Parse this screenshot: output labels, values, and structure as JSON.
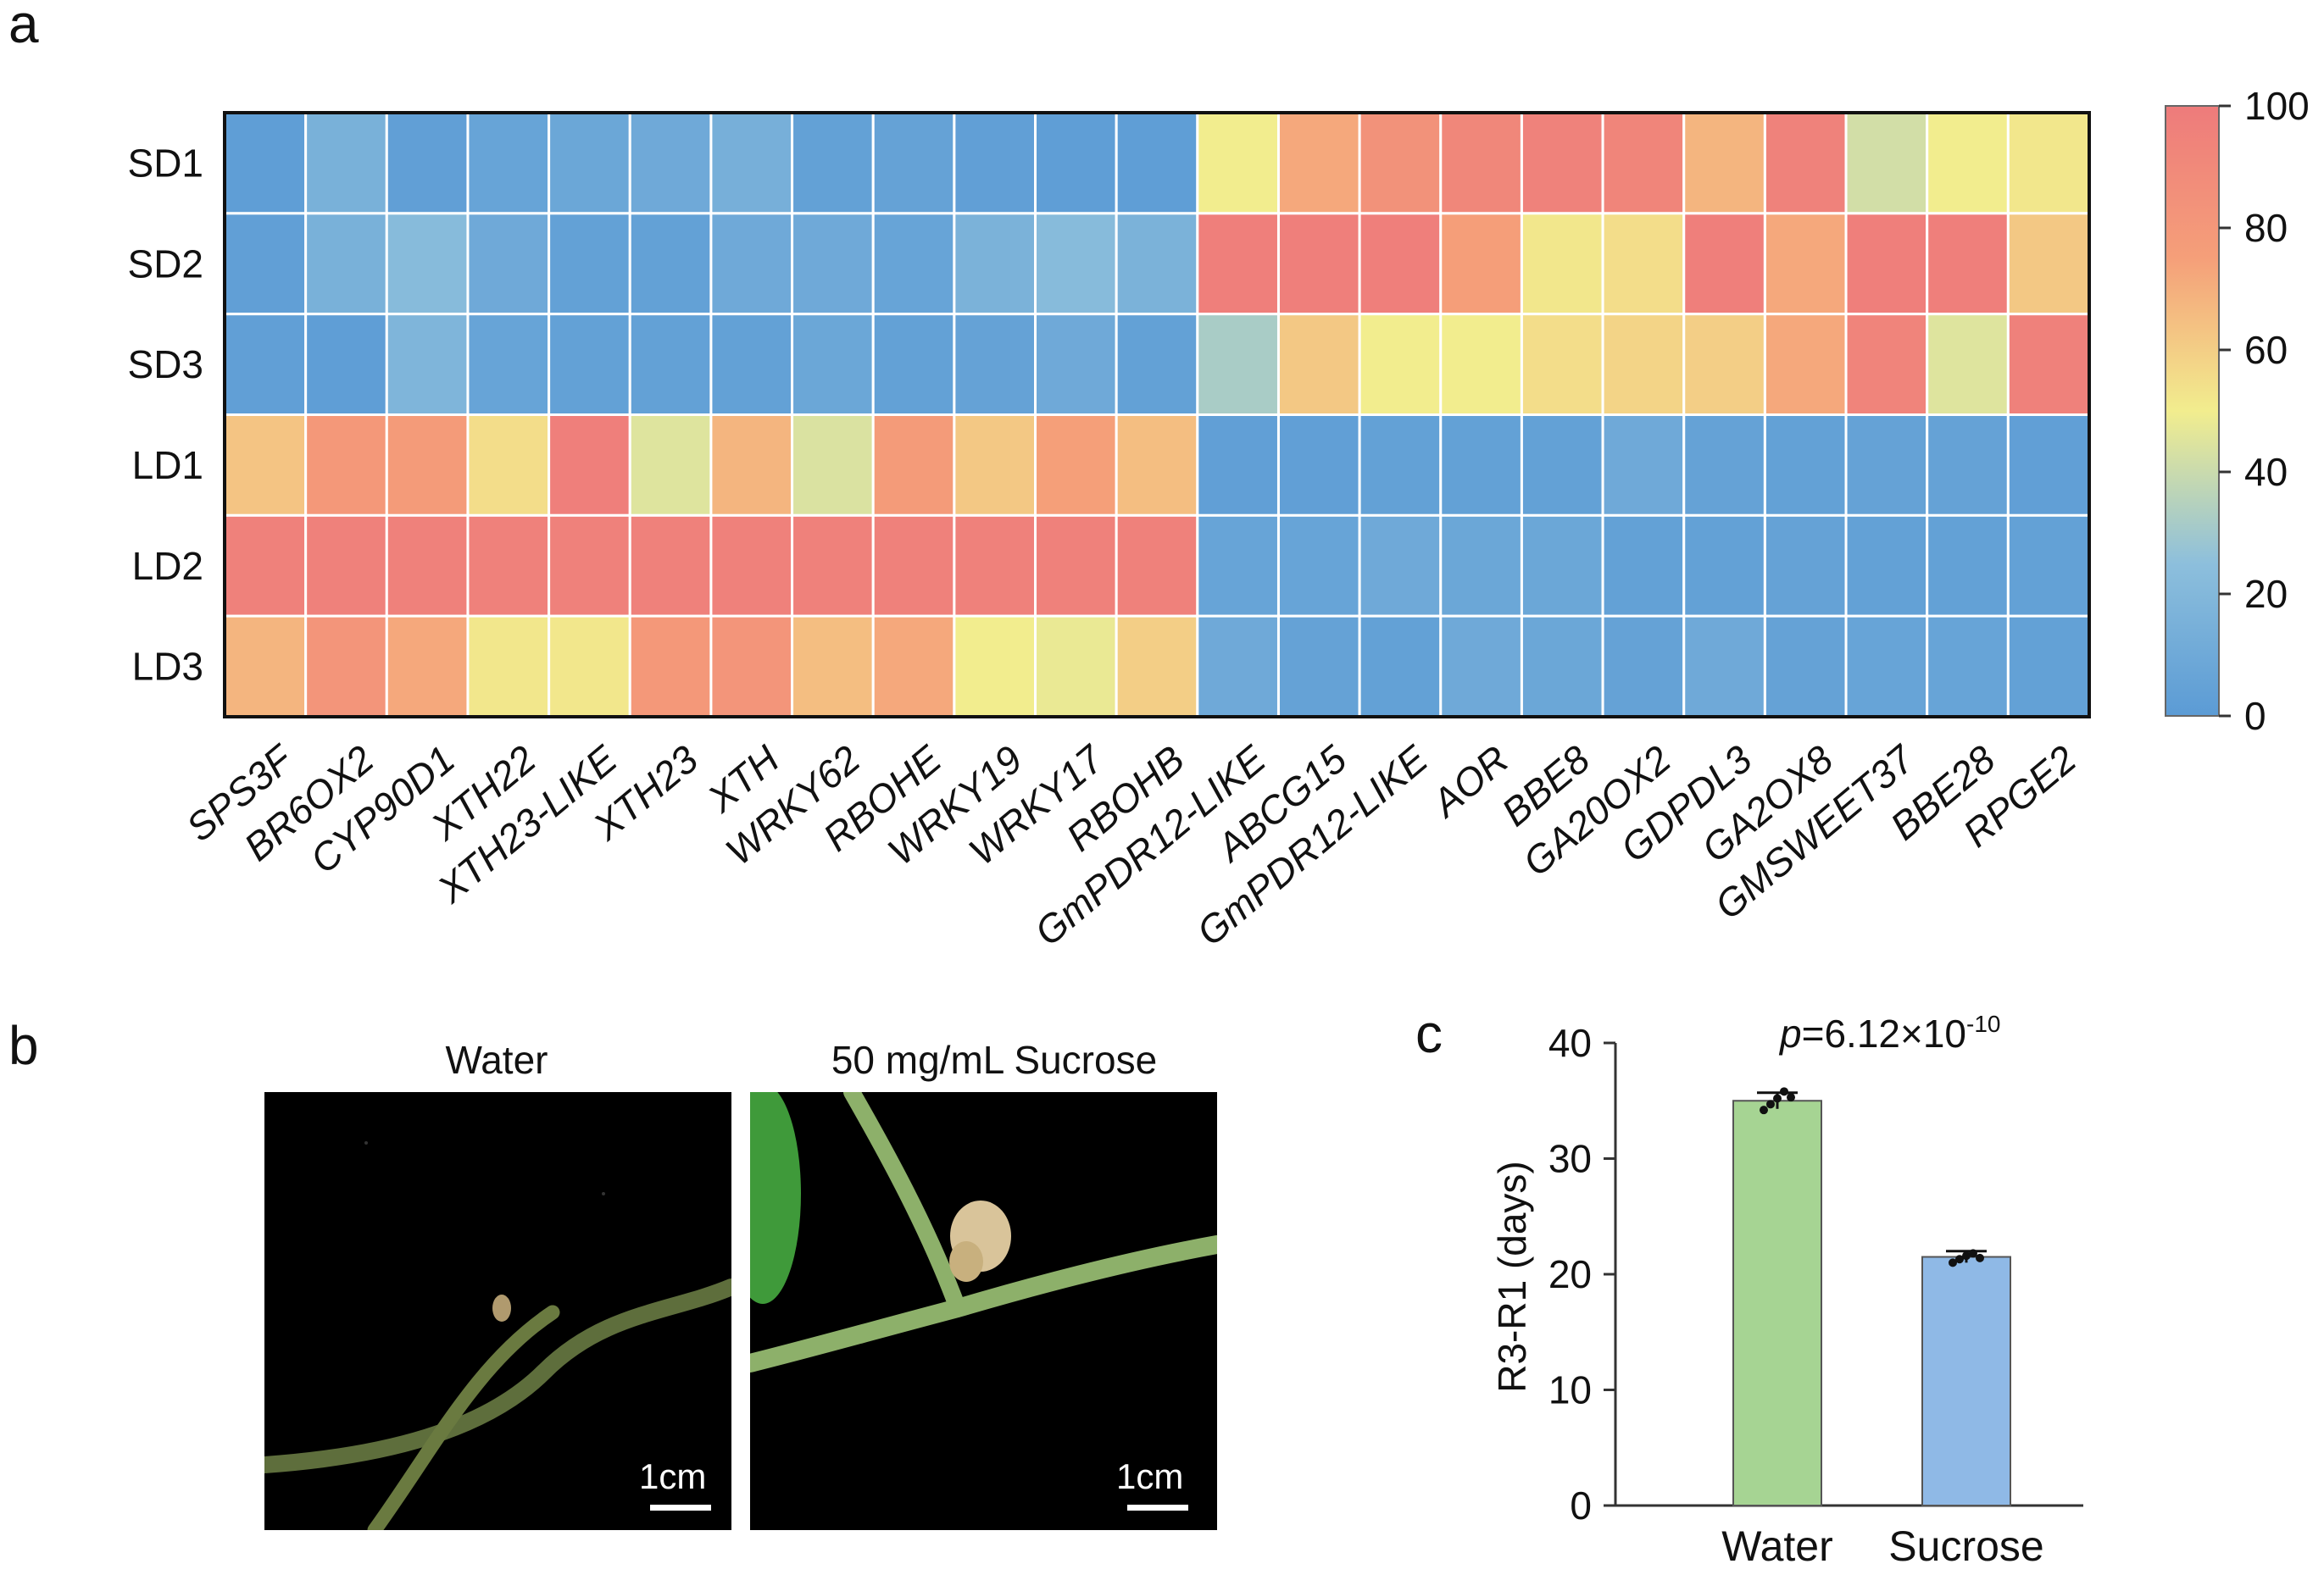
{
  "panel_labels": {
    "a": "a",
    "b": "b",
    "c": "c"
  },
  "chart_data": [
    {
      "type": "heatmap",
      "panel": "a",
      "rows": [
        "SD1",
        "SD2",
        "SD3",
        "LD1",
        "LD2",
        "LD3"
      ],
      "columns": [
        "SPS3F",
        "BR6OX2",
        "CYP90D1",
        "XTH22",
        "XTH23-LIKE",
        "XTH23",
        "XTH",
        "WRKY62",
        "RBOHE",
        "WRKY19",
        "WRKY17",
        "RBOHB",
        "GmPDR12-LIKE",
        "ABCG15",
        "GmPDR12-LIKE",
        "AOR",
        "BBE8",
        "GA20OX2",
        "GDPDL3",
        "GA2OX8",
        "GMSWEET37",
        "BBE28",
        "RPGE2"
      ],
      "values": [
        [
          2,
          15,
          3,
          6,
          8,
          10,
          14,
          4,
          5,
          3,
          2,
          2,
          50,
          72,
          84,
          92,
          95,
          93,
          68,
          95,
          42,
          50,
          52
        ],
        [
          3,
          15,
          22,
          10,
          4,
          4,
          10,
          10,
          6,
          16,
          22,
          16,
          97,
          97,
          97,
          76,
          52,
          55,
          97,
          72,
          97,
          97,
          62
        ],
        [
          3,
          2,
          18,
          6,
          4,
          4,
          4,
          8,
          4,
          5,
          10,
          4,
          32,
          62,
          50,
          50,
          55,
          58,
          60,
          72,
          94,
          45,
          96
        ],
        [
          63,
          80,
          78,
          55,
          97,
          45,
          68,
          44,
          78,
          62,
          75,
          65,
          3,
          3,
          4,
          4,
          4,
          10,
          5,
          4,
          5,
          5,
          3
        ],
        [
          96,
          96,
          96,
          96,
          96,
          96,
          96,
          96,
          96,
          96,
          96,
          96,
          6,
          6,
          10,
          8,
          8,
          4,
          4,
          5,
          4,
          4,
          4
        ],
        [
          68,
          82,
          72,
          52,
          52,
          80,
          82,
          65,
          72,
          50,
          48,
          60,
          10,
          5,
          4,
          10,
          8,
          5,
          10,
          5,
          6,
          6,
          4
        ]
      ],
      "colorbar": {
        "min": 0,
        "max": 100,
        "ticks": [
          0,
          20,
          40,
          60,
          80,
          100
        ]
      },
      "colors": [
        "#5b9bd5",
        "#8dbfdc",
        "#f2ed8e",
        "#f59f79",
        "#ee7b7b"
      ]
    },
    {
      "type": "bar",
      "panel": "c",
      "categories": [
        "Water",
        "Sucrose"
      ],
      "values": [
        35,
        21.5
      ],
      "error": [
        0.7,
        0.5
      ],
      "points": [
        [
          34.2,
          34.7,
          35.2,
          35.8,
          35.3
        ],
        [
          21.0,
          21.3,
          21.6,
          21.8,
          21.4
        ]
      ],
      "bar_colors": [
        "#a6d493",
        "#8fb9e6"
      ],
      "ylabel": "R3-R1 (days)",
      "ylim": [
        0,
        40
      ],
      "yticks": [
        0,
        10,
        20,
        30,
        40
      ],
      "annotation": {
        "prefix": "p",
        "text": "=6.12×10",
        "exponent": "-10"
      }
    }
  ],
  "photos": {
    "left": {
      "title": "Water",
      "scale": "1cm"
    },
    "right": {
      "title": "50 mg/mL Sucrose",
      "scale": "1cm"
    }
  }
}
